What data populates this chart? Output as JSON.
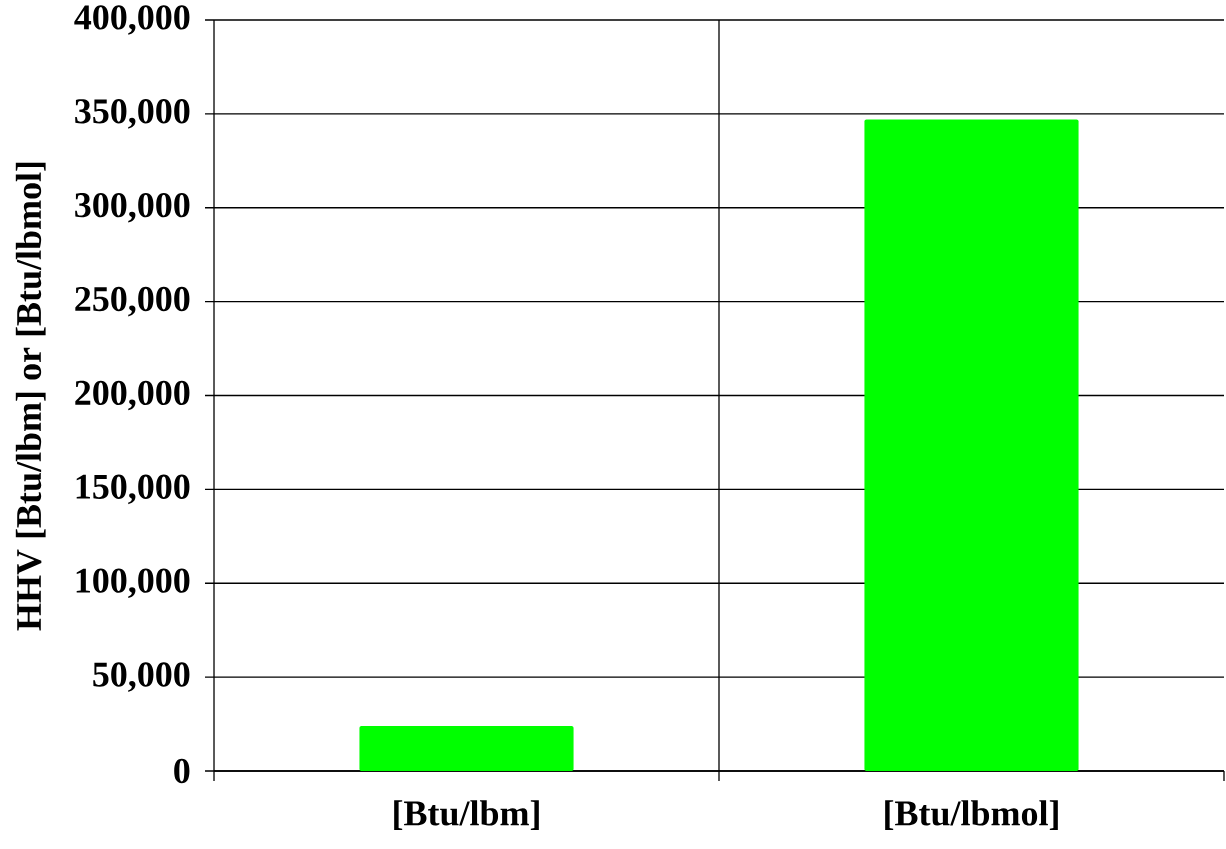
{
  "chart_data": {
    "type": "bar",
    "ylabel": "HHV [Btu/lbm] or [Btu/lbmol]",
    "categories": [
      "[Btu/lbm]",
      "[Btu/lbmol]"
    ],
    "values": [
      24000,
      347000
    ],
    "color": "#00ff00",
    "ylim": [
      0,
      400000
    ],
    "yticks": [
      {
        "value": 0,
        "label": "0"
      },
      {
        "value": 50000,
        "label": "50,000"
      },
      {
        "value": 100000,
        "label": "100,000"
      },
      {
        "value": 150000,
        "label": "150,000"
      },
      {
        "value": 200000,
        "label": "200,000"
      },
      {
        "value": 250000,
        "label": "250,000"
      },
      {
        "value": 300000,
        "label": "300,000"
      },
      {
        "value": 350000,
        "label": "350,000"
      },
      {
        "value": 400000,
        "label": "400,000"
      }
    ],
    "grid": true
  }
}
